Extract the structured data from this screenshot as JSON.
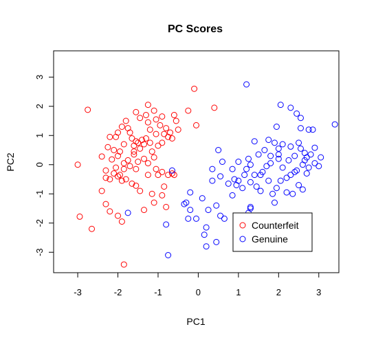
{
  "chart_data": {
    "type": "scatter",
    "title": "PC Scores",
    "xlabel": "PC1",
    "ylabel": "PC2",
    "xlim": [
      -3.6,
      3.5
    ],
    "ylim": [
      -3.7,
      3.9
    ],
    "xticks": [
      -3,
      -2,
      -1,
      0,
      1,
      2,
      3
    ],
    "yticks": [
      -3,
      -2,
      -1,
      0,
      1,
      2,
      3
    ],
    "grid": false,
    "legend": "bottom-right",
    "series": [
      {
        "name": "Counterfeit",
        "color": "#ff0000",
        "marker": "open-circle",
        "points": [
          [
            -2.75,
            1.88
          ],
          [
            -2.2,
            0.95
          ],
          [
            -2.4,
            0.28
          ],
          [
            -2.3,
            -0.2
          ],
          [
            -2.2,
            -0.5
          ],
          [
            -2.4,
            -0.9
          ],
          [
            -3.0,
            0.0
          ],
          [
            -2.95,
            -1.78
          ],
          [
            -2.65,
            -2.2
          ],
          [
            -2.3,
            -1.35
          ],
          [
            -2.2,
            -1.6
          ],
          [
            -2.0,
            -1.75
          ],
          [
            -1.9,
            -1.95
          ],
          [
            -1.85,
            -3.42
          ],
          [
            -2.25,
            0.6
          ],
          [
            -2.1,
            0.5
          ],
          [
            -2.15,
            0.18
          ],
          [
            -2.0,
            0.3
          ],
          [
            -2.05,
            -0.1
          ],
          [
            -2.3,
            -0.45
          ],
          [
            -1.95,
            -0.35
          ],
          [
            -1.8,
            -0.5
          ],
          [
            -1.65,
            -0.65
          ],
          [
            -1.55,
            -0.72
          ],
          [
            -1.45,
            -0.9
          ],
          [
            -2.05,
            0.95
          ],
          [
            -2.0,
            1.1
          ],
          [
            -1.9,
            1.3
          ],
          [
            -1.8,
            1.5
          ],
          [
            -1.75,
            1.25
          ],
          [
            -1.7,
            1.1
          ],
          [
            -1.65,
            0.9
          ],
          [
            -1.55,
            0.8
          ],
          [
            -1.6,
            0.65
          ],
          [
            -1.5,
            0.75
          ],
          [
            -1.45,
            0.55
          ],
          [
            -1.4,
            0.85
          ],
          [
            -1.35,
            0.7
          ],
          [
            -1.3,
            0.9
          ],
          [
            -1.2,
            0.75
          ],
          [
            -1.15,
            0.45
          ],
          [
            -1.1,
            0.25
          ],
          [
            -1.0,
            0.65
          ],
          [
            -0.9,
            0.75
          ],
          [
            -0.85,
            1.05
          ],
          [
            -0.8,
            1.25
          ],
          [
            -0.75,
            0.95
          ],
          [
            -0.7,
            1.1
          ],
          [
            -0.55,
            1.5
          ],
          [
            -0.5,
            1.2
          ],
          [
            -0.6,
            1.7
          ],
          [
            -0.25,
            1.85
          ],
          [
            -0.05,
            1.35
          ],
          [
            -0.1,
            2.6
          ],
          [
            0.4,
            1.95
          ],
          [
            -1.25,
            2.05
          ],
          [
            -1.1,
            1.85
          ],
          [
            -1.3,
            1.7
          ],
          [
            -1.55,
            1.8
          ],
          [
            -1.45,
            1.6
          ],
          [
            -1.25,
            1.45
          ],
          [
            -1.05,
            1.55
          ],
          [
            -0.95,
            1.35
          ],
          [
            -0.9,
            1.65
          ],
          [
            -1.2,
            1.2
          ],
          [
            -1.05,
            1.05
          ],
          [
            -0.65,
            0.9
          ],
          [
            -1.6,
            0.35
          ],
          [
            -1.75,
            0.15
          ],
          [
            -1.85,
            -0.15
          ],
          [
            -1.7,
            -0.05
          ],
          [
            -1.5,
            0.1
          ],
          [
            -1.35,
            0.2
          ],
          [
            -1.25,
            0.05
          ],
          [
            -1.05,
            -0.15
          ],
          [
            -0.9,
            -0.25
          ],
          [
            -1.25,
            -0.35
          ],
          [
            -1.15,
            -1.0
          ],
          [
            -0.85,
            -0.75
          ],
          [
            -0.9,
            -1.05
          ],
          [
            -1.1,
            -1.3
          ],
          [
            -0.75,
            -0.35
          ],
          [
            -0.6,
            -0.35
          ],
          [
            -0.8,
            -1.45
          ],
          [
            -1.35,
            -1.55
          ],
          [
            -1.55,
            -0.15
          ],
          [
            -1.95,
            0.45
          ],
          [
            -2.1,
            -0.3
          ],
          [
            -1.85,
            0.05
          ],
          [
            -1.6,
            0.45
          ],
          [
            -0.65,
            -0.3
          ],
          [
            -1.0,
            -0.35
          ],
          [
            -1.9,
            -0.55
          ],
          [
            -1.85,
            0.7
          ],
          [
            -2.0,
            -0.4
          ]
        ]
      },
      {
        "name": "Genuine",
        "color": "#0000ff",
        "marker": "open-circle",
        "points": [
          [
            1.2,
            2.75
          ],
          [
            2.05,
            2.05
          ],
          [
            2.3,
            1.95
          ],
          [
            1.95,
            1.3
          ],
          [
            2.55,
            1.6
          ],
          [
            2.45,
            1.75
          ],
          [
            2.55,
            1.25
          ],
          [
            2.75,
            1.2
          ],
          [
            2.85,
            1.2
          ],
          [
            3.4,
            1.38
          ],
          [
            1.9,
            0.75
          ],
          [
            2.0,
            0.55
          ],
          [
            2.1,
            0.7
          ],
          [
            2.3,
            0.62
          ],
          [
            2.5,
            0.75
          ],
          [
            2.9,
            0.58
          ],
          [
            3.05,
            0.25
          ],
          [
            2.65,
            0.4
          ],
          [
            2.7,
            0.25
          ],
          [
            2.6,
            0.0
          ],
          [
            2.75,
            -0.1
          ],
          [
            2.45,
            -0.2
          ],
          [
            2.3,
            -0.35
          ],
          [
            2.5,
            -0.7
          ],
          [
            2.6,
            -0.85
          ],
          [
            2.35,
            -1.0
          ],
          [
            1.95,
            -0.8
          ],
          [
            1.85,
            -1.0
          ],
          [
            1.75,
            -0.55
          ],
          [
            1.55,
            -0.35
          ],
          [
            1.3,
            0.0
          ],
          [
            1.25,
            0.2
          ],
          [
            1.0,
            0.1
          ],
          [
            0.85,
            -0.15
          ],
          [
            0.5,
            0.5
          ],
          [
            0.6,
            0.1
          ],
          [
            0.35,
            -0.15
          ],
          [
            0.55,
            -0.4
          ],
          [
            0.35,
            -0.55
          ],
          [
            0.1,
            -1.15
          ],
          [
            0.25,
            -1.55
          ],
          [
            0.45,
            -1.4
          ],
          [
            0.55,
            -1.75
          ],
          [
            0.65,
            -1.85
          ],
          [
            0.2,
            -2.15
          ],
          [
            0.15,
            -2.4
          ],
          [
            0.2,
            -2.8
          ],
          [
            0.45,
            -2.65
          ],
          [
            -0.2,
            -1.55
          ],
          [
            -0.05,
            -1.85
          ],
          [
            -0.3,
            -1.3
          ],
          [
            -0.35,
            -1.35
          ],
          [
            -0.25,
            -1.85
          ],
          [
            -0.75,
            -3.1
          ],
          [
            -0.8,
            -2.05
          ],
          [
            -0.2,
            -0.95
          ],
          [
            1.05,
            -2.25
          ],
          [
            1.3,
            -1.5
          ],
          [
            1.3,
            -1.45
          ],
          [
            1.25,
            -1.65
          ],
          [
            0.95,
            -1.75
          ],
          [
            1.75,
            -2.2
          ],
          [
            1.5,
            -2.0
          ],
          [
            1.0,
            -0.55
          ],
          [
            1.1,
            -0.8
          ],
          [
            1.3,
            -0.6
          ],
          [
            1.45,
            -0.75
          ],
          [
            1.6,
            -0.25
          ],
          [
            1.8,
            0.05
          ],
          [
            2.0,
            0.2
          ],
          [
            2.2,
            -0.45
          ],
          [
            2.1,
            -0.1
          ],
          [
            2.25,
            0.15
          ],
          [
            2.4,
            0.3
          ],
          [
            2.0,
            0.35
          ],
          [
            1.8,
            0.3
          ],
          [
            1.65,
            0.5
          ],
          [
            1.5,
            0.35
          ],
          [
            1.4,
            0.8
          ],
          [
            1.75,
            0.85
          ],
          [
            1.15,
            -0.35
          ],
          [
            0.95,
            -0.7
          ],
          [
            0.85,
            -1.05
          ],
          [
            0.75,
            -0.65
          ],
          [
            1.55,
            -0.9
          ],
          [
            1.9,
            -1.3
          ],
          [
            2.2,
            -0.95
          ],
          [
            2.05,
            -0.55
          ],
          [
            2.7,
            -0.3
          ],
          [
            2.9,
            0.05
          ],
          [
            2.65,
            0.15
          ],
          [
            2.55,
            0.55
          ],
          [
            3.0,
            -0.05
          ],
          [
            2.8,
            0.35
          ],
          [
            1.4,
            -0.35
          ],
          [
            1.2,
            -0.15
          ],
          [
            0.9,
            -0.5
          ],
          [
            -0.65,
            -0.2
          ],
          [
            -1.75,
            -1.65
          ],
          [
            2.4,
            -0.25
          ],
          [
            1.7,
            -0.05
          ]
        ]
      }
    ]
  }
}
